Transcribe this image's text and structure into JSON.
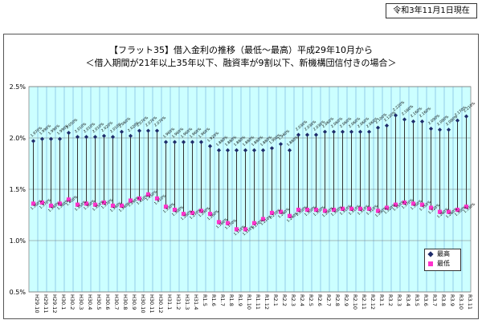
{
  "as_of": "令和3年11月1日現在",
  "title_line1": "【フラット35】借入金利の推移（最低～最高）平成29年10月から",
  "title_line2": "＜借入期間が21年以上35年以下、融資率が9割以下、新機構団信付きの場合＞",
  "colors": {
    "plot_bg": "#ccffff",
    "grid": "#5b9bd5",
    "high": "#1f2d6b",
    "low": "#ff33cc",
    "stem": "#333333"
  },
  "legend": {
    "high_label": "最高",
    "low_label": "最低"
  },
  "chart_data": {
    "type": "line",
    "title": "",
    "xlabel": "",
    "ylabel": "",
    "ylim": [
      0.5,
      2.5
    ],
    "yticks": [
      "0.5%",
      "1.0%",
      "1.5%",
      "2.0%",
      "2.5%"
    ],
    "grid": true,
    "legend_position": "bottom-right",
    "categories": [
      "H29.10",
      "H29.11",
      "H29.12",
      "H30.1",
      "H30.2",
      "H30.3",
      "H30.4",
      "H30.5",
      "H30.6",
      "H30.7",
      "H30.8",
      "H30.9",
      "H30.10",
      "H30.11",
      "H30.12",
      "H31.1",
      "H31.2",
      "H31.3",
      "H31.4",
      "R1.5",
      "R1.6",
      "R1.7",
      "R1.8",
      "R1.9",
      "R1.10",
      "R1.11",
      "R1.12",
      "R2.1",
      "R2.2",
      "R2.3",
      "R2.4",
      "R2.5",
      "R2.6",
      "R2.7",
      "R2.8",
      "R2.9",
      "R2.10",
      "R2.11",
      "R2.12",
      "R3.1",
      "R3.2",
      "R3.3",
      "R3.4",
      "R3.5",
      "R3.6",
      "R3.7",
      "R3.8",
      "R3.9",
      "R3.10",
      "R3.11"
    ],
    "series": [
      {
        "name": "最高",
        "values": [
          1.97,
          1.99,
          1.99,
          1.99,
          2.05,
          2.01,
          2.01,
          2.01,
          2.02,
          2.01,
          2.06,
          2.02,
          2.07,
          2.07,
          2.07,
          1.96,
          1.96,
          1.96,
          1.96,
          1.96,
          1.92,
          1.88,
          1.88,
          1.88,
          1.88,
          1.88,
          1.88,
          1.9,
          1.94,
          1.88,
          2.03,
          2.03,
          2.03,
          2.06,
          2.06,
          2.06,
          2.06,
          2.06,
          2.06,
          2.1,
          2.12,
          2.22,
          2.18,
          2.16,
          2.16,
          2.09,
          2.08,
          2.08,
          2.17,
          2.21
        ]
      },
      {
        "name": "最低",
        "values": [
          1.36,
          1.37,
          1.34,
          1.36,
          1.4,
          1.35,
          1.36,
          1.35,
          1.37,
          1.34,
          1.34,
          1.39,
          1.41,
          1.45,
          1.41,
          1.33,
          1.3,
          1.26,
          1.27,
          1.29,
          1.26,
          1.18,
          1.17,
          1.11,
          1.11,
          1.17,
          1.21,
          1.27,
          1.28,
          1.24,
          1.3,
          1.3,
          1.3,
          1.29,
          1.3,
          1.31,
          1.31,
          1.31,
          1.31,
          1.29,
          1.32,
          1.35,
          1.37,
          1.36,
          1.35,
          1.32,
          1.28,
          1.28,
          1.3,
          1.33
        ]
      }
    ],
    "high_labels": [
      "1.970%",
      "1.990%",
      "1.990%",
      "1.990%",
      "2.050%",
      "2.010%",
      "2.010%",
      "2.010%",
      "2.020%",
      "2.010%",
      "2.060%",
      "2.020%",
      "2.070%",
      "2.070%",
      "2.070%",
      "1.960%",
      "1.960%",
      "1.960%",
      "1.960%",
      "1.960%",
      "1.920%",
      "1.880%",
      "1.880%",
      "1.880%",
      "1.880%",
      "1.880%",
      "1.880%",
      "1.900%",
      "1.940%",
      "1.880%",
      "2.030%",
      "2.030%",
      "2.030%",
      "2.060%",
      "2.060%",
      "2.060%",
      "2.060%",
      "2.060%",
      "2.060%",
      "2.100%",
      "2.120%",
      "2.220%",
      "2.180%",
      "2.160%",
      "2.160%",
      "2.090%",
      "2.080%",
      "2.080%",
      "2.170%",
      "2.210%"
    ],
    "low_labels": [
      "1.360%",
      "1.370%",
      "1.340%",
      "1.360%",
      "1.400%",
      "1.350%",
      "1.360%",
      "1.350%",
      "1.370%",
      "1.340%",
      "1.340%",
      "1.390%",
      "1.410%",
      "1.450%",
      "1.410%",
      "1.330%",
      "1.300%",
      "1.260%",
      "1.270%",
      "1.290%",
      "1.260%",
      "1.180%",
      "1.170%",
      "1.110%",
      "1.110%",
      "1.170%",
      "1.210%",
      "1.270%",
      "1.280%",
      "1.240%",
      "1.300%",
      "1.300%",
      "1.300%",
      "1.290%",
      "1.300%",
      "1.310%",
      "1.310%",
      "1.310%",
      "1.310%",
      "1.290%",
      "1.320%",
      "1.350%",
      "1.370%",
      "1.360%",
      "1.350%",
      "1.320%",
      "1.280%",
      "1.280%",
      "1.300%",
      "1.330%"
    ]
  }
}
